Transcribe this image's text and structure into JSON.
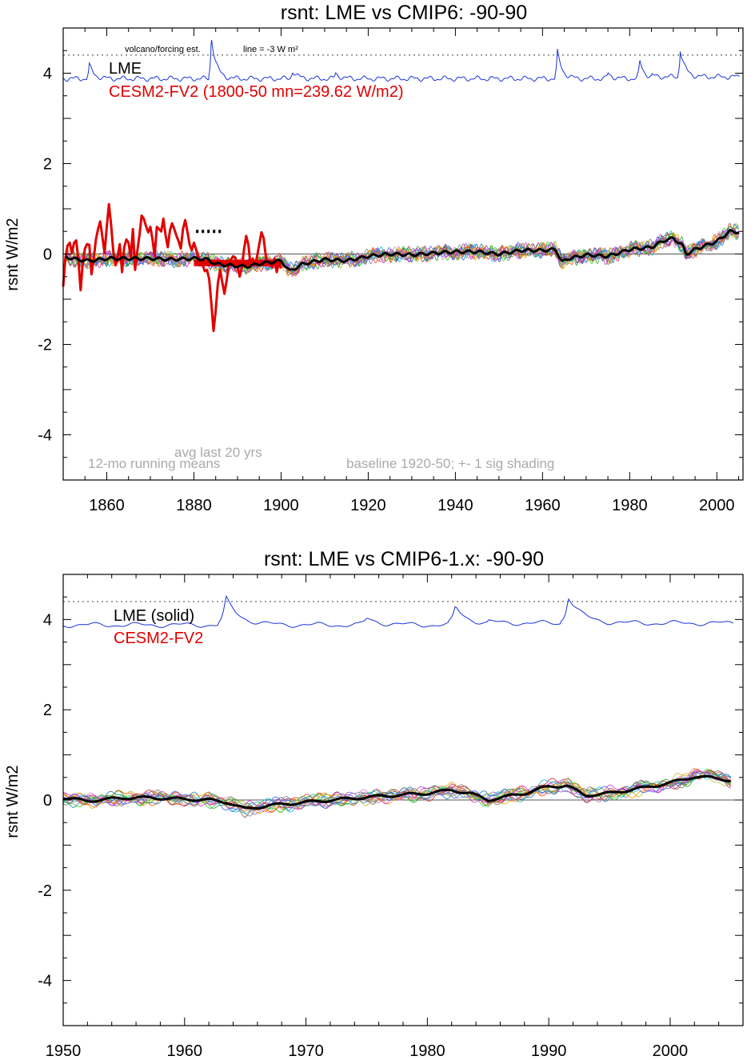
{
  "chart_data": [
    {
      "type": "line",
      "title": "rsnt: LME vs CMIP6: -90-90",
      "ylabel": "rsnt W/m2",
      "xlim": [
        1850,
        2006
      ],
      "ylim": [
        -5,
        5
      ],
      "xticks": [
        "1860",
        "1880",
        "1900",
        "1920",
        "1940",
        "1960",
        "1980",
        "2000"
      ],
      "yticks": [
        "4",
        "2",
        "0",
        "-2",
        "-4"
      ],
      "reference_line": 4.4,
      "annotations": {
        "volcano": "volcano/forcing est.",
        "line_scale": "line = -3 W m²",
        "lme_label": "LME",
        "cesm_label": "CESM2-FV2 (1800-50 mn=239.62 W/m2)",
        "avg_label": "avg last 20 yrs",
        "running_label": "12-mo running means",
        "baseline_label": "baseline 1920-50; +- 1 sig shading"
      },
      "colors": {
        "lme": "#000000",
        "cesm": "#e00000",
        "volcano": "#1a33d9",
        "annotation": "#aaaaaa"
      },
      "volcano_peaks": [
        [
          1884.0,
          4.85
        ],
        [
          1963.4,
          4.5
        ],
        [
          1982.3,
          4.3
        ],
        [
          1991.6,
          4.5
        ],
        [
          1902.6,
          4.08
        ],
        [
          1912.5,
          4.02
        ],
        [
          1975.0,
          4.02
        ],
        [
          1856.0,
          4.2
        ]
      ],
      "cesm_series": {
        "x": [
          1850.0,
          1850.5,
          1851.0,
          1851.5,
          1852.0,
          1852.5,
          1853.0,
          1853.5,
          1854.0,
          1854.5,
          1855.0,
          1855.5,
          1856.0,
          1856.5,
          1857.0,
          1857.5,
          1858.0,
          1858.5,
          1859.0,
          1859.5,
          1860.0,
          1860.5,
          1861.0,
          1861.5,
          1862.0,
          1862.5,
          1863.0,
          1863.5,
          1864.0,
          1864.5,
          1865.0,
          1865.5,
          1866.0,
          1866.5,
          1867.0,
          1867.5,
          1868.0,
          1868.5,
          1869.0,
          1869.5,
          1870.0,
          1870.5,
          1871.0,
          1871.5,
          1872.0,
          1872.5,
          1873.0,
          1873.5,
          1874.0,
          1874.5,
          1875.0,
          1875.5,
          1876.0,
          1876.5,
          1877.0,
          1877.5,
          1878.0,
          1878.5,
          1879.0,
          1879.5,
          1880.0,
          1880.5,
          1881.0,
          1881.5,
          1882.0,
          1882.5,
          1883.0,
          1883.5,
          1884.0,
          1884.5,
          1885.0,
          1885.5,
          1886.0,
          1886.5,
          1887.0,
          1887.5,
          1888.0,
          1888.5,
          1889.0,
          1889.5,
          1890.0,
          1890.5,
          1891.0,
          1891.5,
          1892.0,
          1892.5,
          1893.0,
          1893.5,
          1894.0,
          1894.5,
          1895.0,
          1895.5,
          1896.0,
          1896.5,
          1897.0,
          1897.5,
          1898.0,
          1898.5,
          1899.0,
          1899.5,
          1900.0
        ],
        "y": [
          -0.72,
          -0.1,
          0.18,
          0.25,
          0.02,
          0.25,
          0.3,
          -0.15,
          -0.8,
          -0.2,
          0.12,
          0.22,
          0.2,
          -0.45,
          -0.12,
          0.32,
          0.55,
          0.72,
          0.38,
          0.02,
          0.6,
          1.1,
          0.65,
          0.05,
          -0.25,
          -0.05,
          0.22,
          -0.4,
          0.15,
          0.32,
          0.25,
          -0.08,
          0.55,
          -0.35,
          0.05,
          0.42,
          0.85,
          0.78,
          0.62,
          0.48,
          0.6,
          0.32,
          -0.05,
          0.6,
          0.55,
          0.5,
          0.78,
          0.42,
          0.15,
          0.52,
          0.68,
          0.55,
          0.4,
          0.28,
          0.12,
          0.55,
          0.75,
          0.5,
          0.22,
          0.08,
          0.25,
          0.1,
          -0.05,
          -0.18,
          -0.25,
          -0.38,
          -0.35,
          -0.55,
          -1.1,
          -1.7,
          -1.25,
          -0.65,
          -0.35,
          -0.62,
          -0.88,
          -0.6,
          -0.25,
          -0.12,
          -0.05,
          -0.08,
          -0.25,
          -0.5,
          -0.3,
          0.1,
          0.4,
          0.2,
          -0.25,
          -0.1,
          -0.25,
          -0.05,
          0.22,
          0.48,
          0.35,
          -0.05,
          -0.25,
          -0.15,
          -0.3,
          -0.1,
          -0.4,
          -0.2,
          -0.32
        ]
      },
      "cesm_avg_last_20_yrs": {
        "x": [
          1880,
          1900
        ],
        "y": -0.2
      },
      "lme_anchors": {
        "x": [
          1850,
          1853,
          1856,
          1860,
          1865,
          1870,
          1875,
          1880,
          1883,
          1885,
          1888,
          1892,
          1896,
          1900,
          1902,
          1905,
          1910,
          1915,
          1920,
          1925,
          1930,
          1935,
          1940,
          1945,
          1950,
          1955,
          1960,
          1963,
          1964.5,
          1966,
          1970,
          1975,
          1980,
          1985,
          1988,
          1990,
          1992,
          1993,
          1995,
          2000,
          2003,
          2006
        ],
        "y": [
          -0.05,
          -0.12,
          -0.15,
          -0.1,
          -0.1,
          -0.1,
          -0.12,
          -0.1,
          -0.12,
          -0.22,
          -0.25,
          -0.28,
          -0.2,
          -0.15,
          -0.38,
          -0.22,
          -0.12,
          -0.15,
          -0.05,
          0.0,
          -0.02,
          0.02,
          0.05,
          0.05,
          0.0,
          0.08,
          0.08,
          0.1,
          -0.18,
          -0.1,
          -0.02,
          -0.05,
          0.1,
          0.15,
          0.3,
          0.35,
          0.2,
          0.0,
          0.1,
          0.28,
          0.5,
          0.48
        ]
      }
    },
    {
      "type": "line",
      "title": "rsnt: LME vs CMIP6-1.x: -90-90",
      "ylabel": "rsnt W/m2",
      "xlim": [
        1950,
        2006
      ],
      "ylim": [
        -5,
        5
      ],
      "xticks": [
        "1950",
        "1960",
        "1970",
        "1980",
        "1990",
        "2000"
      ],
      "yticks": [
        "4",
        "2",
        "0",
        "-2",
        "-4"
      ],
      "reference_line": 4.4,
      "annotations": {
        "lme_label": "LME (solid)",
        "cesm_label": "CESM2-FV2"
      },
      "colors": {
        "lme": "#000000",
        "cesm": "#e00000",
        "volcano": "#1a33d9"
      },
      "volcano_peaks": [
        [
          1963.4,
          4.5
        ],
        [
          1982.3,
          4.3
        ],
        [
          1991.6,
          4.5
        ],
        [
          1975.0,
          4.05
        ],
        [
          1956.0,
          3.9
        ]
      ],
      "lme_anchors": {
        "x": [
          1950,
          1952,
          1955,
          1957,
          1960,
          1962,
          1963.5,
          1965,
          1967,
          1970,
          1973,
          1976,
          1980,
          1982,
          1983.5,
          1985,
          1988,
          1990,
          1991.5,
          1993,
          1995,
          1998,
          2000,
          2002,
          2004,
          2006
        ],
        "y": [
          0.05,
          -0.02,
          0.05,
          0.05,
          0.02,
          0.0,
          -0.05,
          -0.2,
          -0.12,
          -0.05,
          0.02,
          0.08,
          0.15,
          0.22,
          0.15,
          0.0,
          0.15,
          0.3,
          0.32,
          0.1,
          0.15,
          0.28,
          0.38,
          0.52,
          0.48,
          0.38
        ]
      }
    }
  ]
}
